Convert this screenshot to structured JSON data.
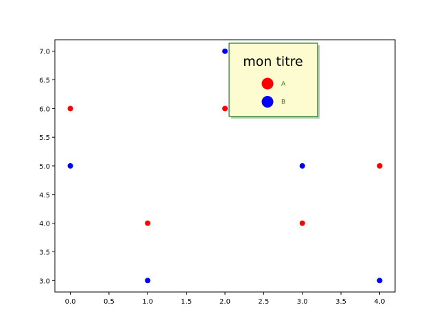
{
  "chart_data": {
    "type": "scatter",
    "title": "",
    "xlabel": "",
    "ylabel": "",
    "xlim": [
      -0.2,
      4.2
    ],
    "ylim": [
      2.8,
      7.2
    ],
    "x_ticks": [
      "0.0",
      "0.5",
      "1.0",
      "1.5",
      "2.0",
      "2.5",
      "3.0",
      "3.5",
      "4.0"
    ],
    "y_ticks": [
      "3.0",
      "3.5",
      "4.0",
      "4.5",
      "5.0",
      "5.5",
      "6.0",
      "6.5",
      "7.0"
    ],
    "grid": false,
    "series": [
      {
        "name": "A",
        "color": "#ff0000",
        "x": [
          0,
          1,
          2,
          3,
          4
        ],
        "y": [
          6,
          4,
          6,
          4,
          5
        ]
      },
      {
        "name": "B",
        "color": "#0000ff",
        "x": [
          0,
          1,
          2,
          3,
          4
        ],
        "y": [
          5,
          3,
          7,
          5,
          3
        ]
      }
    ],
    "legend": {
      "title": "mon titre",
      "placement": "top-right",
      "background": "#fdfbd0",
      "border_color": "#1a7a1a",
      "label_color": "#1a7a1a"
    }
  }
}
